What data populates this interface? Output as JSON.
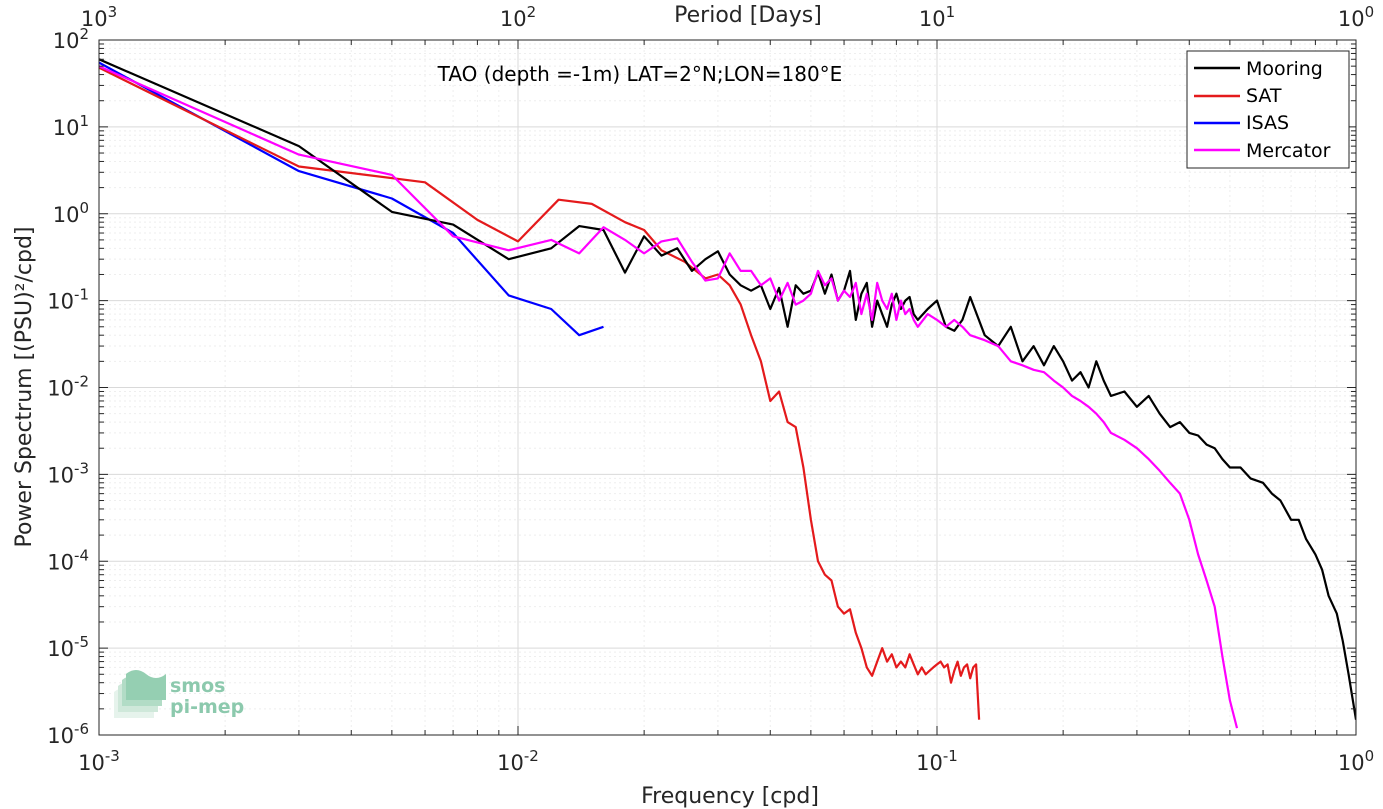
{
  "chart_data": {
    "type": "line",
    "title": "TAO (depth =-1m) LAT=2°N;LON=180°E",
    "xlabel": "Frequency [cpd]",
    "ylabel": "Power Spectrum [(PSU)²/cpd]",
    "top_xlabel": "Period [Days]",
    "x_scale": "log",
    "y_scale": "log",
    "xlim": [
      0.001,
      1
    ],
    "ylim": [
      1e-06,
      100
    ],
    "grid": true,
    "legend_position": "top-right",
    "x_ticks": [
      {
        "value": 0.001,
        "base": "10",
        "exp": "-3"
      },
      {
        "value": 0.01,
        "base": "10",
        "exp": "-2"
      },
      {
        "value": 0.1,
        "base": "10",
        "exp": "-1"
      },
      {
        "value": 1,
        "base": "10",
        "exp": "0"
      }
    ],
    "top_ticks": [
      {
        "value": 0.001,
        "base": "10",
        "exp": "3"
      },
      {
        "value": 0.01,
        "base": "10",
        "exp": "2"
      },
      {
        "value": 0.1,
        "base": "10",
        "exp": "1"
      },
      {
        "value": 1,
        "base": "10",
        "exp": "0"
      }
    ],
    "y_ticks": [
      {
        "value": 100,
        "base": "10",
        "exp": "2"
      },
      {
        "value": 10,
        "base": "10",
        "exp": "1"
      },
      {
        "value": 1,
        "base": "10",
        "exp": "0"
      },
      {
        "value": 0.1,
        "base": "10",
        "exp": "-1"
      },
      {
        "value": 0.01,
        "base": "10",
        "exp": "-2"
      },
      {
        "value": 0.001,
        "base": "10",
        "exp": "-3"
      },
      {
        "value": 0.0001,
        "base": "10",
        "exp": "-4"
      },
      {
        "value": 1e-05,
        "base": "10",
        "exp": "-5"
      },
      {
        "value": 1e-06,
        "base": "10",
        "exp": "-6"
      }
    ],
    "series": [
      {
        "name": "Mooring",
        "color": "#000000",
        "x": [
          0.001,
          0.003,
          0.005,
          0.007,
          0.0095,
          0.012,
          0.014,
          0.016,
          0.018,
          0.02,
          0.022,
          0.024,
          0.026,
          0.028,
          0.03,
          0.032,
          0.034,
          0.036,
          0.038,
          0.04,
          0.042,
          0.044,
          0.046,
          0.048,
          0.05,
          0.052,
          0.054,
          0.056,
          0.058,
          0.06,
          0.062,
          0.064,
          0.066,
          0.068,
          0.07,
          0.072,
          0.074,
          0.076,
          0.078,
          0.08,
          0.082,
          0.084,
          0.086,
          0.088,
          0.09,
          0.095,
          0.1,
          0.105,
          0.11,
          0.115,
          0.12,
          0.13,
          0.14,
          0.15,
          0.16,
          0.17,
          0.18,
          0.19,
          0.2,
          0.21,
          0.22,
          0.23,
          0.24,
          0.25,
          0.26,
          0.28,
          0.3,
          0.32,
          0.34,
          0.36,
          0.38,
          0.4,
          0.42,
          0.44,
          0.46,
          0.48,
          0.5,
          0.53,
          0.56,
          0.6,
          0.63,
          0.66,
          0.7,
          0.73,
          0.76,
          0.8,
          0.83,
          0.86,
          0.9,
          0.93,
          0.96,
          1.0
        ],
        "y": [
          60,
          6,
          1.05,
          0.75,
          0.3,
          0.4,
          0.72,
          0.65,
          0.21,
          0.55,
          0.33,
          0.4,
          0.22,
          0.3,
          0.37,
          0.2,
          0.15,
          0.13,
          0.15,
          0.08,
          0.14,
          0.05,
          0.15,
          0.12,
          0.13,
          0.21,
          0.12,
          0.2,
          0.1,
          0.13,
          0.22,
          0.06,
          0.12,
          0.16,
          0.05,
          0.1,
          0.07,
          0.05,
          0.09,
          0.12,
          0.08,
          0.1,
          0.11,
          0.07,
          0.06,
          0.08,
          0.1,
          0.05,
          0.045,
          0.06,
          0.11,
          0.04,
          0.03,
          0.05,
          0.02,
          0.03,
          0.018,
          0.03,
          0.02,
          0.012,
          0.015,
          0.01,
          0.02,
          0.012,
          0.008,
          0.009,
          0.006,
          0.008,
          0.005,
          0.0035,
          0.004,
          0.003,
          0.0028,
          0.0022,
          0.002,
          0.0015,
          0.0012,
          0.0012,
          0.0009,
          0.0008,
          0.0006,
          0.0005,
          0.0003,
          0.0003,
          0.00018,
          0.00012,
          8e-05,
          4e-05,
          2.5e-05,
          1.2e-05,
          5e-06,
          1.5e-06
        ]
      },
      {
        "name": "SAT",
        "color": "#e41a1c",
        "x": [
          0.001,
          0.003,
          0.006,
          0.008,
          0.01,
          0.0125,
          0.015,
          0.018,
          0.02,
          0.022,
          0.025,
          0.028,
          0.03,
          0.032,
          0.034,
          0.036,
          0.038,
          0.04,
          0.042,
          0.044,
          0.046,
          0.048,
          0.05,
          0.052,
          0.054,
          0.056,
          0.058,
          0.06,
          0.062,
          0.064,
          0.066,
          0.068,
          0.07,
          0.072,
          0.074,
          0.076,
          0.078,
          0.08,
          0.082,
          0.084,
          0.086,
          0.088,
          0.09,
          0.092,
          0.094,
          0.096,
          0.098,
          0.1,
          0.102,
          0.104,
          0.106,
          0.108,
          0.11,
          0.112,
          0.114,
          0.116,
          0.118,
          0.12,
          0.122,
          0.124,
          0.126
        ],
        "y": [
          48,
          3.5,
          2.3,
          0.85,
          0.48,
          1.45,
          1.3,
          0.8,
          0.65,
          0.38,
          0.28,
          0.18,
          0.2,
          0.15,
          0.09,
          0.04,
          0.02,
          0.007,
          0.009,
          0.004,
          0.0035,
          0.0012,
          0.0003,
          0.0001,
          7e-05,
          6e-05,
          3e-05,
          2.5e-05,
          2.8e-05,
          1.5e-05,
          1e-05,
          6e-06,
          4.8e-06,
          7e-06,
          1e-05,
          7e-06,
          8.5e-06,
          6e-06,
          7e-06,
          6e-06,
          8.5e-06,
          6.5e-06,
          5e-06,
          6e-06,
          5e-06,
          5.5e-06,
          6e-06,
          6.5e-06,
          7e-06,
          6e-06,
          6.5e-06,
          4e-06,
          5.5e-06,
          7e-06,
          4.8e-06,
          6e-06,
          6.5e-06,
          4.5e-06,
          6e-06,
          6.5e-06,
          1.5e-06
        ]
      },
      {
        "name": "ISAS",
        "color": "#0000ff",
        "x": [
          0.001,
          0.003,
          0.005,
          0.007,
          0.0095,
          0.012,
          0.014,
          0.016
        ],
        "y": [
          55,
          3.1,
          1.5,
          0.6,
          0.115,
          0.08,
          0.04,
          0.05
        ]
      },
      {
        "name": "Mercator",
        "color": "#ff00ff",
        "x": [
          0.001,
          0.003,
          0.005,
          0.007,
          0.0095,
          0.012,
          0.014,
          0.016,
          0.018,
          0.02,
          0.022,
          0.024,
          0.026,
          0.028,
          0.03,
          0.032,
          0.034,
          0.036,
          0.038,
          0.04,
          0.042,
          0.044,
          0.046,
          0.048,
          0.05,
          0.052,
          0.054,
          0.056,
          0.058,
          0.06,
          0.062,
          0.064,
          0.066,
          0.068,
          0.07,
          0.072,
          0.074,
          0.076,
          0.078,
          0.08,
          0.082,
          0.084,
          0.086,
          0.088,
          0.09,
          0.095,
          0.1,
          0.105,
          0.11,
          0.115,
          0.12,
          0.13,
          0.14,
          0.15,
          0.16,
          0.17,
          0.18,
          0.19,
          0.2,
          0.21,
          0.22,
          0.23,
          0.24,
          0.25,
          0.26,
          0.28,
          0.3,
          0.32,
          0.34,
          0.36,
          0.38,
          0.4,
          0.42,
          0.44,
          0.46,
          0.48,
          0.5,
          0.52
        ],
        "y": [
          50,
          4.8,
          2.8,
          0.55,
          0.38,
          0.5,
          0.35,
          0.7,
          0.5,
          0.35,
          0.48,
          0.52,
          0.28,
          0.17,
          0.18,
          0.35,
          0.22,
          0.22,
          0.15,
          0.18,
          0.1,
          0.16,
          0.09,
          0.1,
          0.12,
          0.22,
          0.15,
          0.18,
          0.1,
          0.13,
          0.11,
          0.16,
          0.07,
          0.12,
          0.06,
          0.16,
          0.1,
          0.08,
          0.12,
          0.06,
          0.1,
          0.07,
          0.08,
          0.06,
          0.05,
          0.07,
          0.06,
          0.05,
          0.06,
          0.05,
          0.04,
          0.035,
          0.03,
          0.02,
          0.018,
          0.016,
          0.015,
          0.012,
          0.01,
          0.008,
          0.007,
          0.006,
          0.005,
          0.004,
          0.003,
          0.0025,
          0.002,
          0.0015,
          0.0011,
          0.0008,
          0.0006,
          0.0003,
          0.00012,
          6e-05,
          3e-05,
          8e-06,
          2.5e-06,
          1.2e-06
        ]
      }
    ]
  },
  "logo": {
    "line1": "smos",
    "line2": "pi-mep"
  }
}
